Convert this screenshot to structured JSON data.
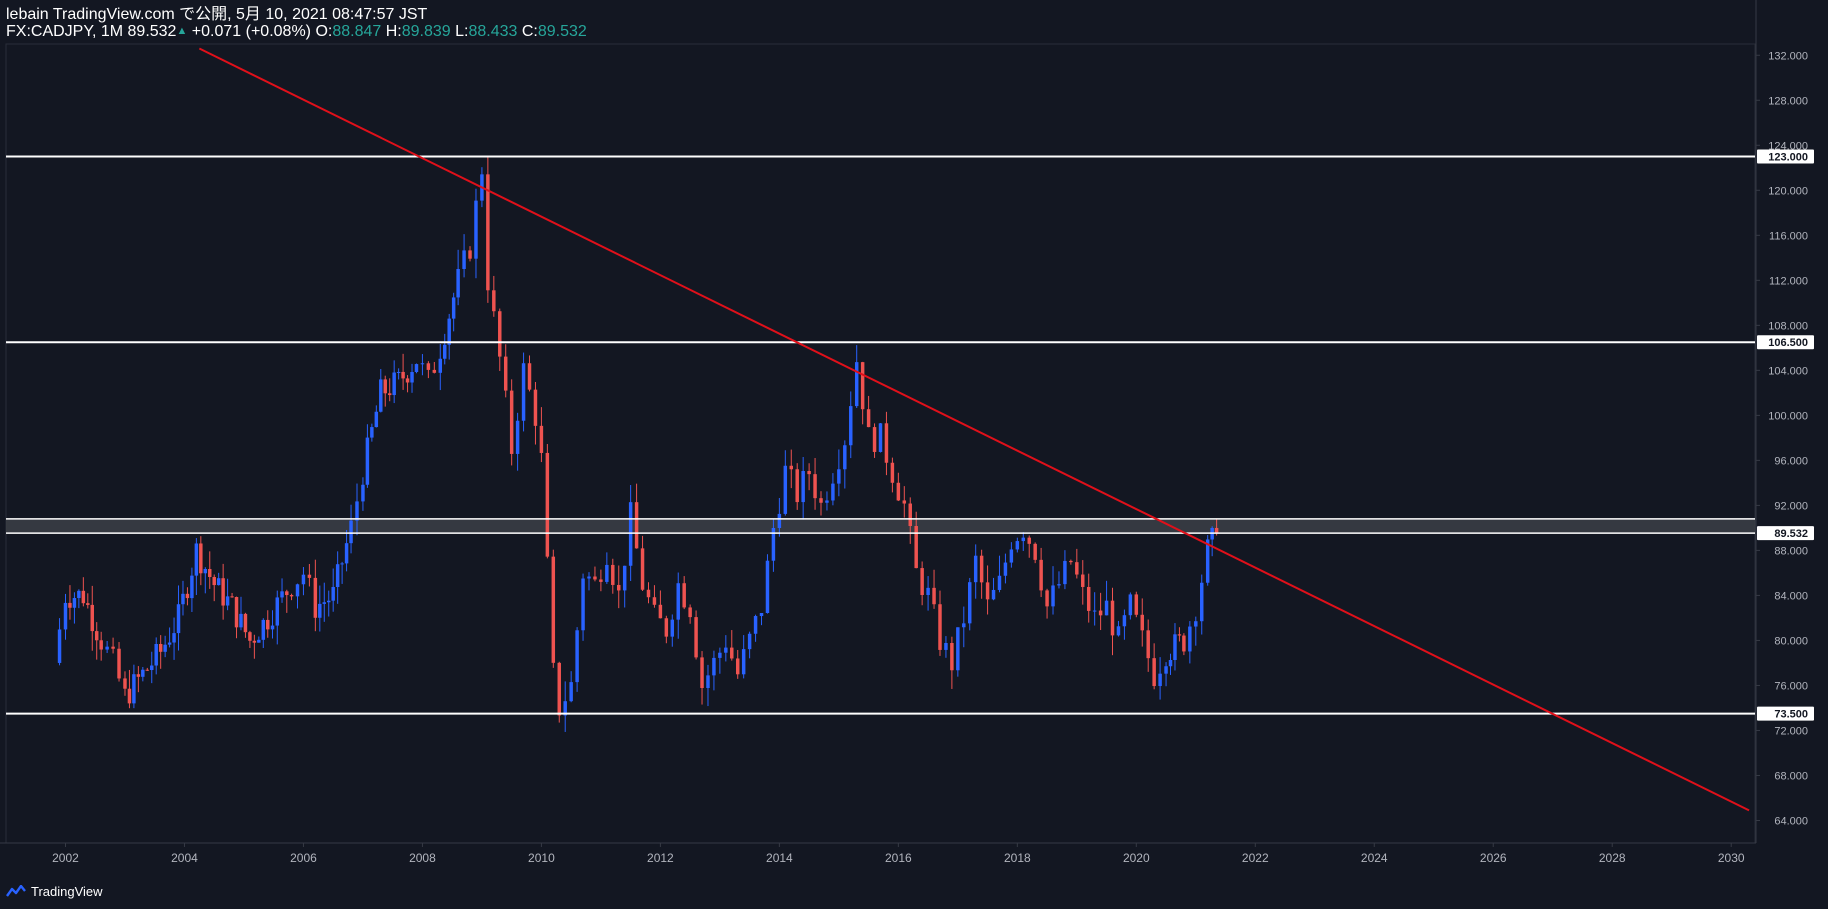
{
  "header": {
    "line1": "lebain TradingView.com で公開, 5月 10, 2021 08:47:57 JST",
    "symbol": "FX:CADJPY, 1M 89.532",
    "change": "+0.071 (+0.08%)",
    "o_label": "O:",
    "o_value": "88.847",
    "h_label": "H:",
    "h_value": "89.839",
    "l_label": "L:",
    "l_value": "88.433",
    "c_label": "C:",
    "c_value": "89.532"
  },
  "footer": {
    "brand": "TradingView"
  },
  "colors": {
    "background": "#131722",
    "up": "#2962ff",
    "down": "#ef5350",
    "trendline": "#e0101a",
    "level": "#ffffff",
    "axis_text": "#b2b5be",
    "header_value": "#26a69a",
    "zone_fill": "#3c3f47"
  },
  "chart_data": {
    "type": "candlestick",
    "title": "FX:CADJPY, 1M",
    "timeframe": "1M",
    "xlim": [
      2001.0,
      2030.4
    ],
    "ylim": [
      62.0,
      133.0
    ],
    "x_ticks": [
      "2002",
      "2004",
      "2006",
      "2008",
      "2010",
      "2012",
      "2014",
      "2016",
      "2018",
      "2020",
      "2022",
      "2024",
      "2026",
      "2028",
      "2030"
    ],
    "y_ticks": [
      "64.000",
      "68.000",
      "72.000",
      "76.000",
      "80.000",
      "84.000",
      "88.000",
      "92.000",
      "96.000",
      "100.000",
      "104.000",
      "108.000",
      "112.000",
      "116.000",
      "120.000",
      "124.000",
      "128.000",
      "132.000"
    ],
    "last_price": 89.532,
    "horizontal_levels": [
      {
        "value": 123.0,
        "label": "123.000"
      },
      {
        "value": 106.5,
        "label": "106.500"
      },
      {
        "value": 73.5,
        "label": "73.500"
      }
    ],
    "resistance_zone": {
      "low": 89.532,
      "high": 90.8
    },
    "trendline": {
      "p1": [
        2004.25,
        132.6
      ],
      "p2": [
        2030.3,
        64.9
      ]
    },
    "close_path": [
      [
        2001.8,
        78
      ],
      [
        2002.0,
        84
      ],
      [
        2002.3,
        84
      ],
      [
        2002.6,
        80
      ],
      [
        2002.8,
        78
      ],
      [
        2003.0,
        75
      ],
      [
        2003.3,
        77
      ],
      [
        2003.6,
        79
      ],
      [
        2003.9,
        82
      ],
      [
        2004.2,
        88
      ],
      [
        2004.5,
        85
      ],
      [
        2004.8,
        83
      ],
      [
        2005.1,
        80
      ],
      [
        2005.4,
        82
      ],
      [
        2005.8,
        85
      ],
      [
        2006.0,
        86
      ],
      [
        2006.2,
        83
      ],
      [
        2006.5,
        84
      ],
      [
        2006.8,
        90
      ],
      [
        2007.0,
        95
      ],
      [
        2007.3,
        102
      ],
      [
        2007.6,
        103
      ],
      [
        2007.9,
        105
      ],
      [
        2008.1,
        103
      ],
      [
        2008.3,
        106
      ],
      [
        2008.6,
        112
      ],
      [
        2008.8,
        115
      ],
      [
        2009.0,
        122
      ],
      [
        2009.1,
        112
      ],
      [
        2009.3,
        105
      ],
      [
        2009.5,
        97
      ],
      [
        2009.7,
        104
      ],
      [
        2009.9,
        100
      ],
      [
        2010.0,
        96
      ],
      [
        2010.2,
        77
      ],
      [
        2010.3,
        74
      ],
      [
        2010.5,
        76
      ],
      [
        2010.7,
        86
      ],
      [
        2010.9,
        85
      ],
      [
        2011.1,
        88
      ],
      [
        2011.3,
        84
      ],
      [
        2011.5,
        91
      ],
      [
        2011.7,
        85
      ],
      [
        2011.9,
        82
      ],
      [
        2012.1,
        81
      ],
      [
        2012.3,
        85
      ],
      [
        2012.5,
        83
      ],
      [
        2012.7,
        76
      ],
      [
        2012.9,
        78
      ],
      [
        2013.1,
        80
      ],
      [
        2013.3,
        77
      ],
      [
        2013.5,
        80
      ],
      [
        2013.7,
        83
      ],
      [
        2013.9,
        90
      ],
      [
        2014.1,
        95
      ],
      [
        2014.3,
        93
      ],
      [
        2014.5,
        95
      ],
      [
        2014.7,
        92
      ],
      [
        2014.9,
        95
      ],
      [
        2015.1,
        98
      ],
      [
        2015.3,
        105
      ],
      [
        2015.5,
        98
      ],
      [
        2015.7,
        98
      ],
      [
        2015.9,
        95
      ],
      [
        2016.1,
        92
      ],
      [
        2016.3,
        86
      ],
      [
        2016.5,
        84
      ],
      [
        2016.7,
        80
      ],
      [
        2016.9,
        78
      ],
      [
        2017.1,
        82
      ],
      [
        2017.3,
        87
      ],
      [
        2017.5,
        83
      ],
      [
        2017.7,
        85
      ],
      [
        2017.9,
        89
      ],
      [
        2018.1,
        90
      ],
      [
        2018.3,
        88
      ],
      [
        2018.5,
        83
      ],
      [
        2018.7,
        85
      ],
      [
        2018.9,
        87
      ],
      [
        2019.1,
        84
      ],
      [
        2019.3,
        82
      ],
      [
        2019.5,
        83
      ],
      [
        2019.7,
        80
      ],
      [
        2019.9,
        83
      ],
      [
        2020.1,
        80
      ],
      [
        2020.3,
        77
      ],
      [
        2020.5,
        79
      ],
      [
        2020.8,
        80
      ],
      [
        2021.0,
        83
      ],
      [
        2021.2,
        88
      ],
      [
        2021.35,
        89.532
      ]
    ]
  }
}
